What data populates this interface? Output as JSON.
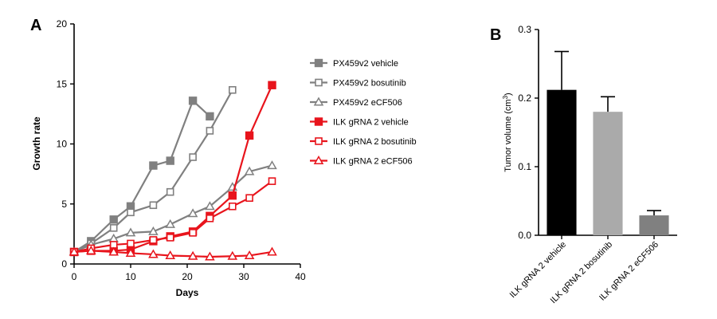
{
  "chart_data": [
    {
      "panel": "A",
      "type": "line",
      "xlabel": "Days",
      "ylabel": "Growth rate",
      "xlim": [
        0,
        40
      ],
      "ylim": [
        0,
        20
      ],
      "xticks": [
        "0",
        "10",
        "20",
        "30",
        "40"
      ],
      "yticks": [
        "0",
        "5",
        "10",
        "15",
        "20"
      ],
      "legend_position": "top-right",
      "series": [
        {
          "name": "PX459v2 vehicle",
          "color": "#808080",
          "marker": "square-filled",
          "x": [
            0,
            3,
            7,
            10,
            14,
            17,
            21,
            24
          ],
          "y": [
            1.0,
            1.9,
            3.7,
            4.8,
            8.2,
            8.6,
            13.6,
            12.3
          ]
        },
        {
          "name": "PX459v2 bosutinib",
          "color": "#808080",
          "marker": "square-open",
          "x": [
            0,
            3,
            7,
            10,
            14,
            17,
            21,
            24,
            28
          ],
          "y": [
            1.0,
            1.7,
            3.0,
            4.3,
            4.9,
            6.0,
            8.9,
            11.1,
            14.5
          ]
        },
        {
          "name": "PX459v2 eCF506",
          "color": "#808080",
          "marker": "triangle-open",
          "x": [
            0,
            3,
            7,
            10,
            14,
            17,
            21,
            24,
            28,
            31,
            35
          ],
          "y": [
            1.0,
            1.6,
            2.1,
            2.6,
            2.7,
            3.3,
            4.2,
            4.8,
            6.4,
            7.7,
            8.2
          ]
        },
        {
          "name": "ILK gRNA 2 vehicle",
          "color": "#e8141c",
          "marker": "square-filled",
          "x": [
            0,
            3,
            7,
            10,
            14,
            17,
            21,
            24,
            28,
            31,
            35
          ],
          "y": [
            1.0,
            1.1,
            1.1,
            1.2,
            1.9,
            2.3,
            2.7,
            4.0,
            5.7,
            10.7,
            14.9
          ]
        },
        {
          "name": "ILK gRNA 2 bosutinib",
          "color": "#e8141c",
          "marker": "square-open",
          "x": [
            0,
            3,
            7,
            10,
            14,
            17,
            21,
            24,
            28,
            31,
            35
          ],
          "y": [
            1.0,
            1.3,
            1.6,
            1.7,
            2.0,
            2.2,
            2.6,
            3.8,
            4.8,
            5.5,
            6.9
          ]
        },
        {
          "name": "ILK gRNA 2 eCF506",
          "color": "#e8141c",
          "marker": "triangle-open",
          "x": [
            0,
            3,
            7,
            10,
            14,
            17,
            21,
            24,
            28,
            31,
            35
          ],
          "y": [
            1.0,
            1.1,
            1.0,
            0.9,
            0.8,
            0.7,
            0.65,
            0.6,
            0.65,
            0.7,
            1.0
          ]
        }
      ]
    },
    {
      "panel": "B",
      "type": "bar",
      "ylabel_main": "Tumor volume (cm",
      "ylabel_sup": "3",
      "ylabel_end": ")",
      "ylim": [
        0,
        0.3
      ],
      "yticks": [
        "0.0",
        "0.1",
        "0.2",
        "0.3"
      ],
      "categories": [
        "ILK gRNA 2 vehicle",
        "ILK gRNA 2 bosutinib",
        "ILK gRNA 2 eCF506"
      ],
      "values": [
        0.212,
        0.18,
        0.029
      ],
      "errors": [
        0.056,
        0.022,
        0.007
      ],
      "colors": [
        "#000000",
        "#aaaaaa",
        "#808080"
      ]
    }
  ]
}
